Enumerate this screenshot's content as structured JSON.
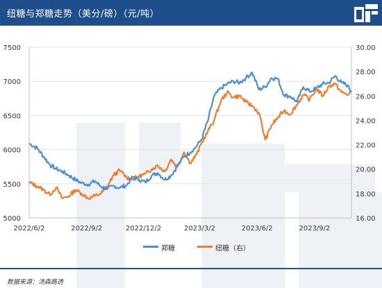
{
  "header": {
    "title": "纽糖与郑糖走势（美分/磅）（元/吨）",
    "logo_icon": "brand-logo-icon"
  },
  "colors": {
    "header_bg": "#1f4e8c",
    "zhengtang": "#4a8fd4",
    "niutang": "#ee7d31"
  },
  "legend": {
    "position": "bottom-center",
    "items": [
      {
        "label": "郑糖",
        "color": "#4a8fd4"
      },
      {
        "label": "纽糖（右）",
        "color": "#ee7d31"
      }
    ]
  },
  "source": "数据来源：汤森路透",
  "chart_data": {
    "type": "line",
    "title": "纽糖与郑糖走势（美分/磅）（元/吨）",
    "grid": true,
    "x_type": "date",
    "x_range": [
      "2022-06-02",
      "2023-10-31"
    ],
    "x_tick_labels": [
      "2022/6/2",
      "2022/9/2",
      "2022/12/2",
      "2023/3/2",
      "2023/6/2",
      "2023/9/2"
    ],
    "y_left": {
      "range": [
        5000,
        7500
      ],
      "tick_labels": [
        "5000",
        "5500",
        "6000",
        "6500",
        "7000",
        "7500"
      ]
    },
    "y_right": {
      "range": [
        16,
        30
      ],
      "tick_labels": [
        "16.00",
        "18.00",
        "20.00",
        "22.00",
        "24.00",
        "26.00",
        "28.00",
        "30.00"
      ]
    },
    "series": [
      {
        "name": "郑糖",
        "axis": "left",
        "x": [
          "2022-06-02",
          "2022-06-15",
          "2022-06-25",
          "2022-07-05",
          "2022-07-15",
          "2022-07-25",
          "2022-08-05",
          "2022-08-15",
          "2022-08-25",
          "2022-09-05",
          "2022-09-15",
          "2022-09-25",
          "2022-10-05",
          "2022-10-15",
          "2022-10-25",
          "2022-11-05",
          "2022-11-15",
          "2022-11-25",
          "2022-12-05",
          "2022-12-15",
          "2022-12-25",
          "2023-01-05",
          "2023-01-15",
          "2023-01-25",
          "2023-02-05",
          "2023-02-15",
          "2023-02-25",
          "2023-03-05",
          "2023-03-15",
          "2023-03-25",
          "2023-04-05",
          "2023-04-15",
          "2023-04-25",
          "2023-05-05",
          "2023-05-15",
          "2023-05-25",
          "2023-06-05",
          "2023-06-15",
          "2023-06-25",
          "2023-07-05",
          "2023-07-15",
          "2023-07-25",
          "2023-08-05",
          "2023-08-15",
          "2023-08-25",
          "2023-09-05",
          "2023-09-15",
          "2023-09-25",
          "2023-10-05",
          "2023-10-15",
          "2023-10-25",
          "2023-10-31"
        ],
        "y": [
          6090,
          6020,
          5900,
          5780,
          5720,
          5680,
          5620,
          5560,
          5510,
          5490,
          5540,
          5460,
          5420,
          5470,
          5440,
          5480,
          5600,
          5560,
          5520,
          5620,
          5660,
          5560,
          5620,
          5750,
          5900,
          5960,
          6050,
          6150,
          6420,
          6780,
          6900,
          6960,
          7000,
          6980,
          7050,
          7130,
          6880,
          6920,
          7050,
          7040,
          6800,
          6780,
          6700,
          6920,
          6850,
          6900,
          6960,
          6980,
          7080,
          6980,
          6940,
          6840
        ]
      },
      {
        "name": "纽糖（右）",
        "axis": "right",
        "x": [
          "2022-06-02",
          "2022-06-15",
          "2022-06-25",
          "2022-07-05",
          "2022-07-15",
          "2022-07-25",
          "2022-08-05",
          "2022-08-15",
          "2022-08-25",
          "2022-09-05",
          "2022-09-15",
          "2022-09-25",
          "2022-10-05",
          "2022-10-15",
          "2022-10-25",
          "2022-11-05",
          "2022-11-15",
          "2022-11-25",
          "2022-12-05",
          "2022-12-15",
          "2022-12-25",
          "2023-01-05",
          "2023-01-15",
          "2023-01-25",
          "2023-02-05",
          "2023-02-15",
          "2023-02-25",
          "2023-03-05",
          "2023-03-15",
          "2023-03-25",
          "2023-04-05",
          "2023-04-15",
          "2023-04-25",
          "2023-05-05",
          "2023-05-15",
          "2023-05-25",
          "2023-06-05",
          "2023-06-15",
          "2023-06-25",
          "2023-07-05",
          "2023-07-15",
          "2023-07-25",
          "2023-08-05",
          "2023-08-15",
          "2023-08-25",
          "2023-09-05",
          "2023-09-15",
          "2023-09-25",
          "2023-10-05",
          "2023-10-15",
          "2023-10-25",
          "2023-10-31"
        ],
        "y": [
          18.9,
          18.6,
          18.3,
          17.9,
          18.5,
          17.6,
          17.8,
          18.3,
          18.0,
          17.6,
          17.8,
          18.0,
          18.6,
          19.5,
          19.9,
          19.3,
          19.2,
          19.4,
          19.6,
          20.0,
          20.3,
          19.8,
          20.8,
          20.2,
          21.4,
          20.5,
          21.2,
          22.1,
          23.1,
          24.0,
          25.6,
          26.3,
          25.9,
          26.0,
          25.5,
          25.2,
          24.6,
          22.4,
          23.6,
          24.2,
          24.8,
          24.5,
          25.3,
          26.1,
          25.7,
          26.6,
          26.0,
          26.8,
          27.0,
          26.3,
          26.1,
          26.4
        ]
      }
    ]
  }
}
